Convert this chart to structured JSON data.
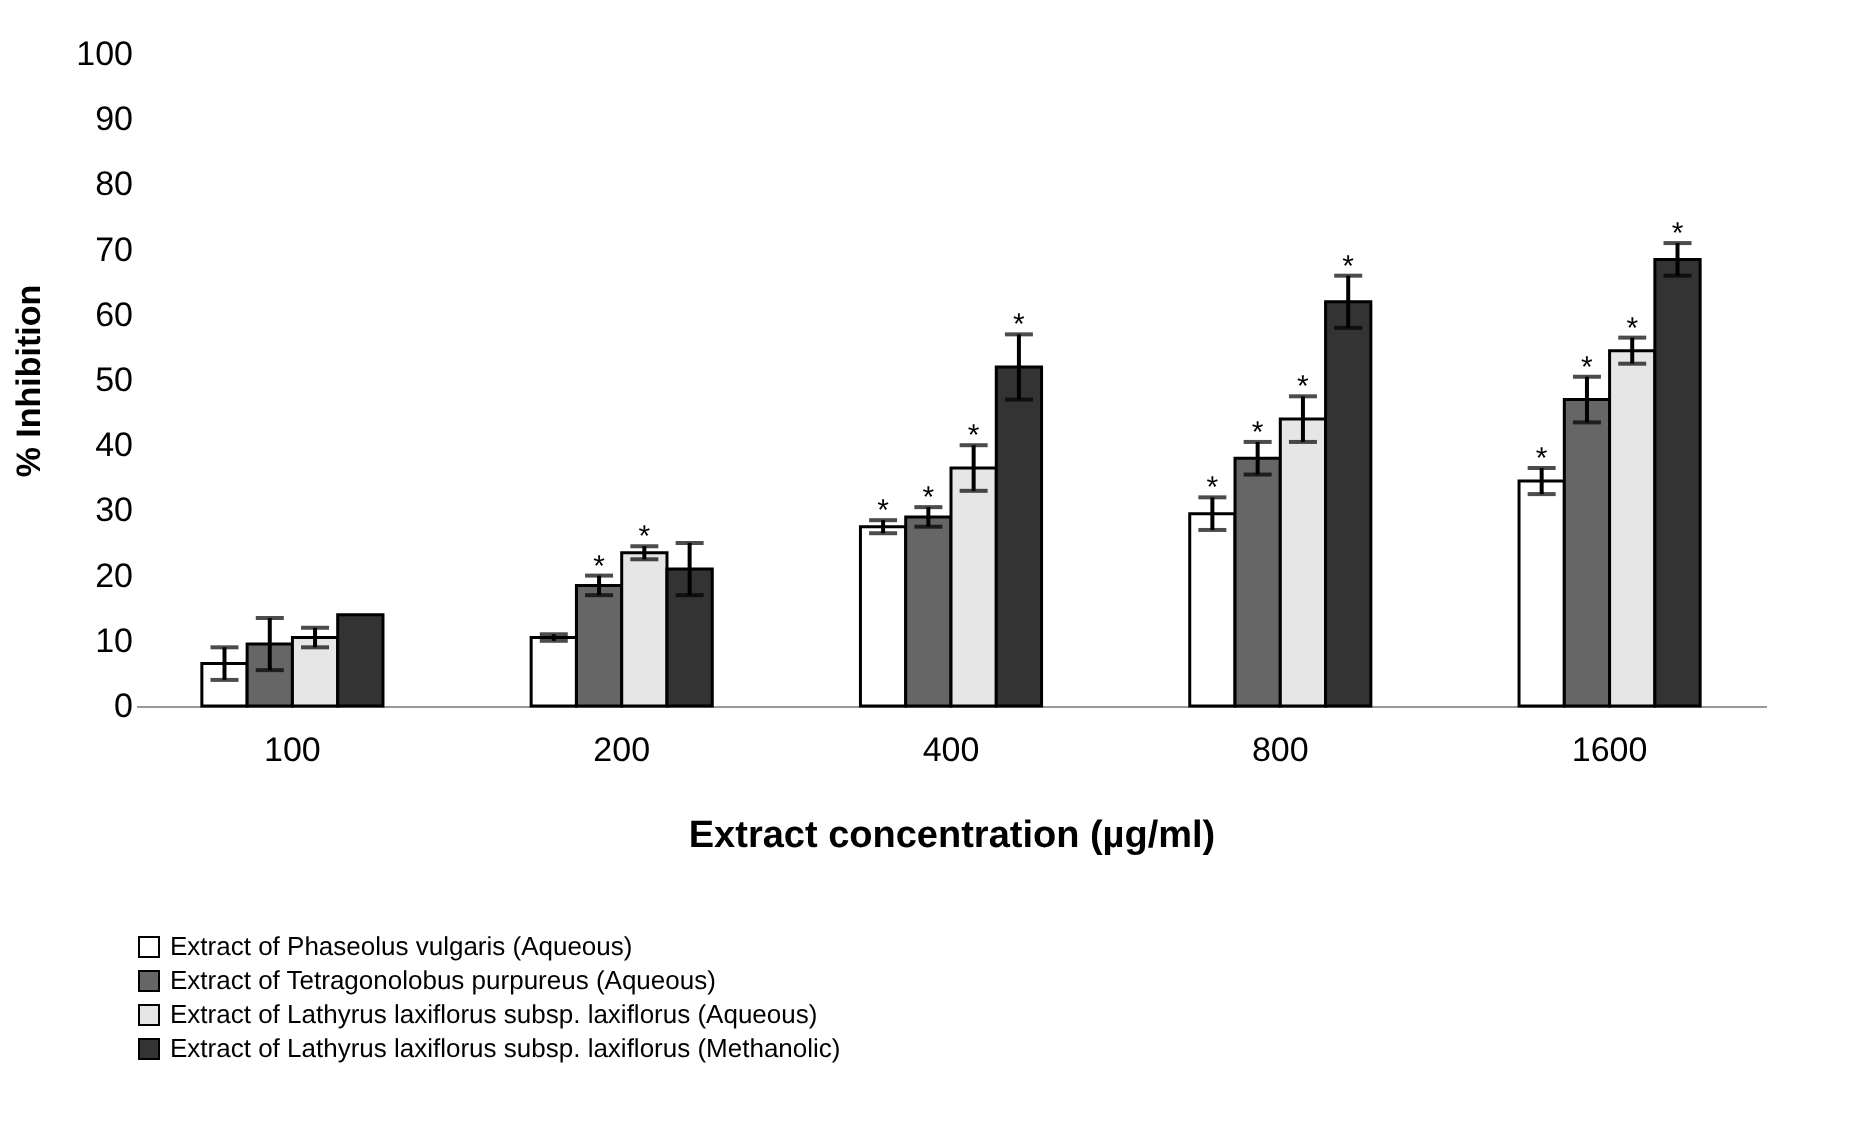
{
  "chart_data": {
    "type": "bar",
    "xlabel": "Extract concentration (µg/ml)",
    "ylabel": "% Inhibition",
    "categories": [
      "100",
      "200",
      "400",
      "800",
      "1600"
    ],
    "ylim": [
      0,
      100
    ],
    "yticks": [
      0,
      10,
      20,
      30,
      40,
      50,
      60,
      70,
      80,
      90,
      100
    ],
    "grid": false,
    "legend": "bottom",
    "series": [
      {
        "name": "Extract of Phaseolus vulgaris (Aqueous)",
        "color": "#ffffff",
        "values": [
          6.5,
          10.5,
          27.5,
          29.5,
          34.5
        ],
        "errors": [
          2.5,
          0.5,
          1,
          2.5,
          2
        ],
        "value_labels": [
          null,
          null,
          "*",
          "*",
          "*"
        ]
      },
      {
        "name": "Extract of Tetragonolobus purpureus (Aqueous)",
        "color": "#666666",
        "values": [
          9.5,
          18.5,
          29,
          38,
          47
        ],
        "errors": [
          4,
          1.5,
          1.5,
          2.5,
          3.5
        ],
        "value_labels": [
          null,
          "*",
          "*",
          "*",
          "*"
        ]
      },
      {
        "name": "Extract of Lathyrus laxiflorus subsp. laxiflorus (Aqueous)",
        "color": "#e6e6e6",
        "values": [
          10.5,
          23.5,
          36.5,
          44,
          54.5
        ],
        "errors": [
          1.5,
          1,
          3.5,
          3.5,
          2
        ],
        "value_labels": [
          null,
          "*",
          "*",
          "*",
          "*"
        ]
      },
      {
        "name": "Extract of Lathyrus laxiflorus subsp. laxiflorus (Methanolic)",
        "color": "#333333",
        "values": [
          14,
          21,
          52,
          62,
          68.5
        ],
        "errors": [
          null,
          4,
          5,
          4,
          2.5
        ],
        "value_labels": [
          null,
          null,
          "*",
          "*",
          "*"
        ]
      }
    ]
  }
}
